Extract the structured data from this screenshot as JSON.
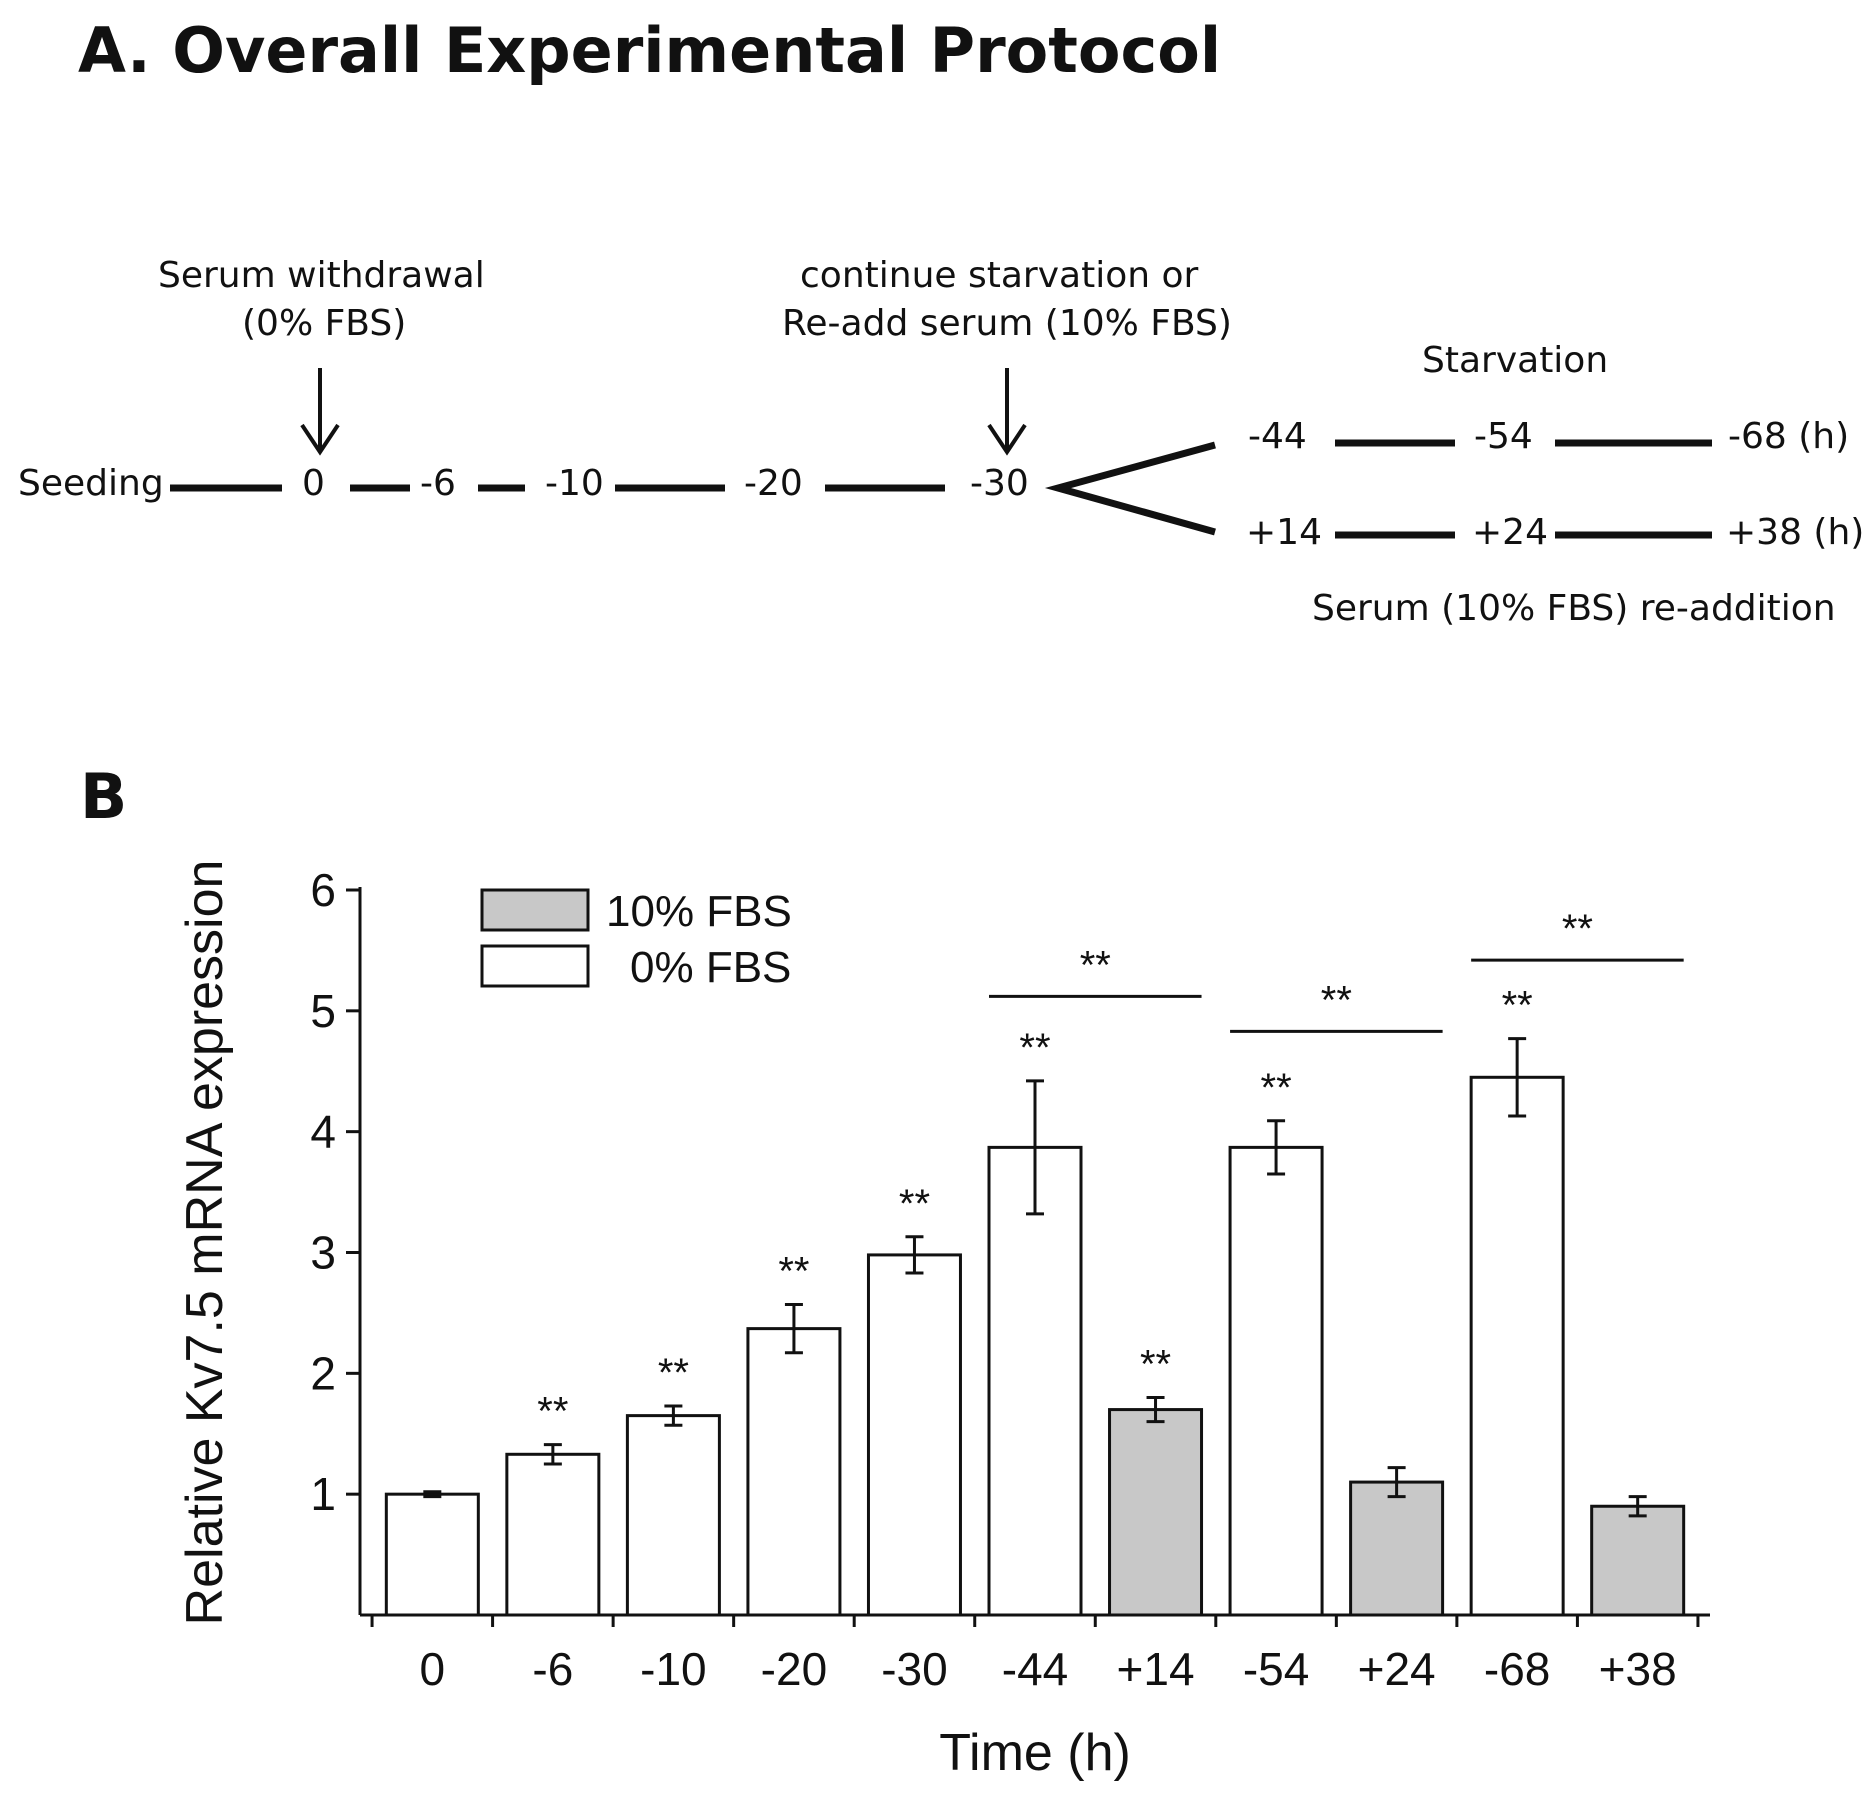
{
  "panelA": {
    "title": "A. Overall Experimental Protocol",
    "seeding": "Seeding",
    "serum_withdrawal": "Serum withdrawal",
    "zero_fbs": "(0% FBS)",
    "continue_line1": "continue starvation or",
    "continue_line2": "Re-add serum (10% FBS)",
    "starvation": "Starvation",
    "readdition": "Serum (10% FBS) re-addition",
    "main_timepoints": [
      "0",
      "-6",
      "-10",
      "-20",
      "-30"
    ],
    "starvation_branch": [
      "-44",
      "-54",
      "-68 (h)"
    ],
    "readd_branch": [
      "+14",
      "+24",
      "+38 (h)"
    ]
  },
  "panelB": {
    "label": "B"
  },
  "chart_data": {
    "type": "bar",
    "title": "",
    "xlabel": "Time (h)",
    "ylabel": "Relative Kv7.5 mRNA expression",
    "ylim": [
      0,
      6
    ],
    "yticks": [
      "1",
      "2",
      "3",
      "4",
      "5",
      "6"
    ],
    "categories": [
      "0",
      "-6",
      "-10",
      "-20",
      "-30",
      "-44",
      "+14",
      "-54",
      "+24",
      "-68",
      "+38"
    ],
    "values": [
      1.0,
      1.33,
      1.65,
      2.37,
      2.98,
      3.87,
      1.7,
      3.87,
      1.1,
      4.45,
      0.9
    ],
    "errors": [
      0.02,
      0.08,
      0.08,
      0.2,
      0.15,
      0.55,
      0.1,
      0.22,
      0.12,
      0.32,
      0.08
    ],
    "condition": [
      "0% FBS",
      "0% FBS",
      "0% FBS",
      "0% FBS",
      "0% FBS",
      "0% FBS",
      "10% FBS",
      "0% FBS",
      "10% FBS",
      "0% FBS",
      "10% FBS"
    ],
    "significance": [
      "",
      "**",
      "**",
      "**",
      "**",
      "**",
      "**",
      "**",
      "",
      "**",
      ""
    ],
    "comparisons": [
      {
        "from": "-44",
        "to": "+14",
        "label": "**",
        "y": 5.12
      },
      {
        "from": "-54",
        "to": "+24",
        "label": "**",
        "y": 4.83
      },
      {
        "from": "-68",
        "to": "+38",
        "label": "**",
        "y": 5.42
      }
    ],
    "legend": [
      {
        "label": "10% FBS",
        "color": "#c8c8c8"
      },
      {
        "label": "0% FBS",
        "color": "#ffffff"
      }
    ],
    "legend_position": "top-left"
  }
}
